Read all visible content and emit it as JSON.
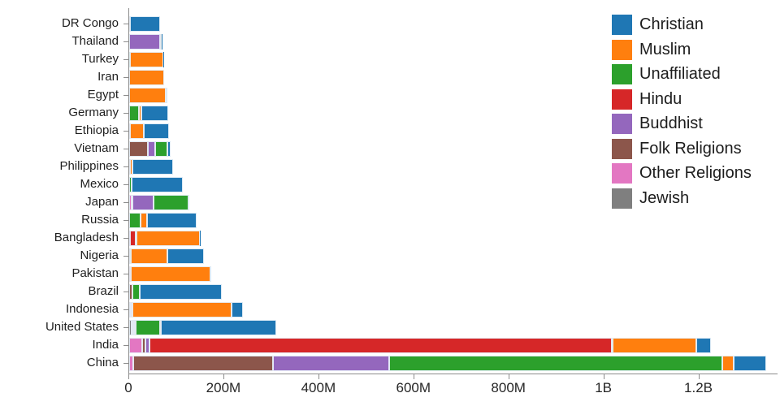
{
  "chart_data": {
    "type": "bar",
    "orientation": "horizontal",
    "stacked": true,
    "title": "",
    "xlabel": "",
    "ylabel": "",
    "grid": false,
    "legend_position": "top-right",
    "x_max_millions": 1365,
    "x_ticks": [
      {
        "value_millions": 0,
        "label": "0"
      },
      {
        "value_millions": 200,
        "label": "200M"
      },
      {
        "value_millions": 400,
        "label": "400M"
      },
      {
        "value_millions": 600,
        "label": "600M"
      },
      {
        "value_millions": 800,
        "label": "800M"
      },
      {
        "value_millions": 1000,
        "label": "1B"
      },
      {
        "value_millions": 1200,
        "label": "1.2B"
      }
    ],
    "categories": [
      "DR Congo",
      "Thailand",
      "Turkey",
      "Iran",
      "Egypt",
      "Germany",
      "Ethiopia",
      "Vietnam",
      "Philippines",
      "Mexico",
      "Japan",
      "Russia",
      "Bangladesh",
      "Nigeria",
      "Pakistan",
      "Brazil",
      "Indonesia",
      "United States",
      "India",
      "China"
    ],
    "stack_order": [
      "Jewish",
      "Other Religions",
      "Folk Religions",
      "Buddhist",
      "Hindu",
      "Unaffiliated",
      "Muslim",
      "Christian"
    ],
    "series": [
      {
        "name": "Christian",
        "color": "#1f77b4",
        "values_millions": [
          63.2,
          0.6,
          0.3,
          0.1,
          4.1,
          56.5,
          52.1,
          7.2,
          86.4,
          107.8,
          2.0,
          104.7,
          0.5,
          78.1,
          2.8,
          173.3,
          23.7,
          243.1,
          31.1,
          68.4
        ]
      },
      {
        "name": "Muslim",
        "color": "#ff7f0e",
        "values_millions": [
          1.0,
          3.8,
          71.3,
          73.6,
          76.9,
          4.8,
          28.7,
          0.2,
          5.1,
          0,
          0.2,
          14.3,
          133.5,
          77.3,
          167.4,
          0.2,
          209.1,
          2.8,
          176.2,
          24.7
        ]
      },
      {
        "name": "Unaffiliated",
        "color": "#2ca02c",
        "values_millions": [
          0.1,
          0.2,
          0.9,
          0.1,
          0,
          20.3,
          0.1,
          26.0,
          0.1,
          5.3,
          72.1,
          23.2,
          0.1,
          0.4,
          0,
          15.4,
          0.2,
          50.9,
          1.5,
          700.7
        ]
      },
      {
        "name": "Hindu",
        "color": "#d62728",
        "values_millions": [
          0,
          0.1,
          0,
          0,
          0,
          0.1,
          0,
          0.1,
          0,
          0,
          0,
          0,
          13.5,
          0,
          3.3,
          0,
          4.1,
          1.8,
          973.8,
          0
        ]
      },
      {
        "name": "Buddhist",
        "color": "#9467bd",
        "values_millions": [
          0,
          64.4,
          0,
          0,
          0,
          0.2,
          0,
          14.4,
          0,
          0,
          45.8,
          0.1,
          0.7,
          0,
          0,
          0.5,
          1.7,
          3.7,
          9.3,
          244.1
        ]
      },
      {
        "name": "Folk Religions",
        "color": "#8c564b",
        "values_millions": [
          1.2,
          0.1,
          0,
          0,
          0,
          0,
          2.2,
          39.8,
          1.4,
          0.1,
          0.5,
          0.2,
          0.2,
          2.2,
          0,
          5.5,
          0.7,
          0.6,
          5.8,
          294.3
        ]
      },
      {
        "name": "Other Religions",
        "color": "#e377c2",
        "values_millions": [
          0.3,
          0.1,
          0.2,
          0.3,
          0,
          0.1,
          0,
          0.4,
          0.1,
          0.1,
          5.9,
          0.1,
          0.1,
          0.2,
          0.1,
          0.6,
          0.4,
          1.9,
          27.6,
          9.1
        ]
      },
      {
        "name": "Jewish",
        "color": "#7f7f7f",
        "values_millions": [
          0,
          0,
          0,
          0,
          0,
          0.2,
          0,
          0,
          0,
          0,
          0,
          0.2,
          0,
          0,
          0,
          0.1,
          0,
          5.7,
          0,
          0
        ]
      }
    ],
    "axis_color": "#8c8c8c",
    "label_color": "#1f1f1f"
  }
}
